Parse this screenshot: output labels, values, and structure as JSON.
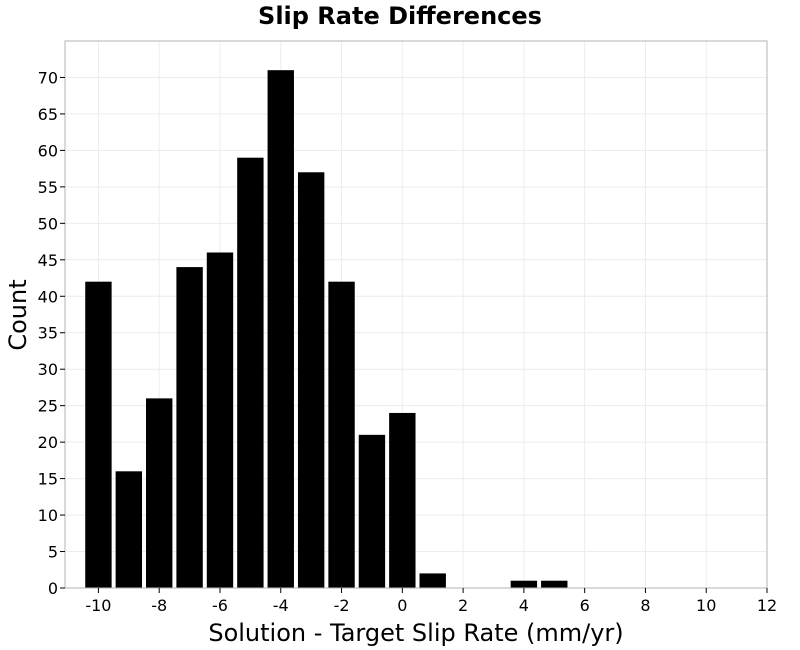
{
  "chart_data": {
    "type": "bar",
    "title": "Slip Rate Differences",
    "xlabel": "Solution - Target Slip Rate (mm/yr)",
    "ylabel": "Count",
    "bin_width": 2,
    "bins": [
      {
        "x": -10,
        "count": 42
      },
      {
        "x": -9,
        "count": 16
      },
      {
        "x": -8,
        "count": 26
      },
      {
        "x": -7,
        "count": 44
      },
      {
        "x": -6,
        "count": 46
      },
      {
        "x": -5,
        "count": 59
      },
      {
        "x": -4,
        "count": 71
      },
      {
        "x": -3,
        "count": 57
      },
      {
        "x": -2,
        "count": 42
      },
      {
        "x": -1,
        "count": 21
      },
      {
        "x": 0,
        "count": 24
      },
      {
        "x": 1,
        "count": 2
      },
      {
        "x": 4,
        "count": 1
      },
      {
        "x": 5,
        "count": 1
      }
    ],
    "xlim": [
      -11.1,
      12
    ],
    "ylim": [
      0,
      75
    ],
    "xticks": [
      -10,
      -8,
      -6,
      -4,
      -2,
      0,
      2,
      4,
      6,
      8,
      10,
      12
    ],
    "yticks": [
      0,
      5,
      10,
      15,
      20,
      25,
      30,
      35,
      40,
      45,
      50,
      55,
      60,
      65,
      70
    ],
    "grid": true,
    "bar_color": "#000000",
    "grid_color": "#ececec",
    "frame_color": "#b3b3b3"
  }
}
